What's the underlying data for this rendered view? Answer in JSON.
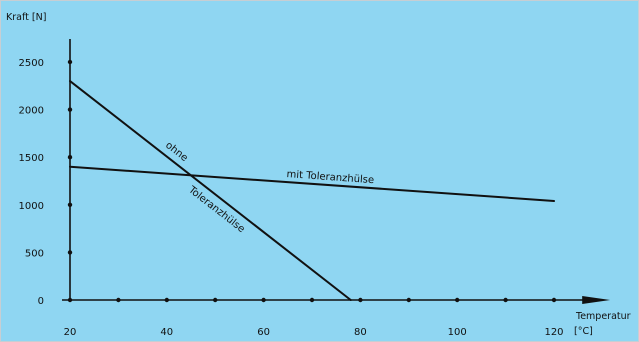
{
  "colors": {
    "background": "#8fd6f2",
    "line": "#111111",
    "frame": "#c7ced3"
  },
  "chart_data": {
    "type": "line",
    "xlabel": "Temperatur",
    "xunit": "[°C]",
    "ylabel": "Kraft [N]",
    "xlim": [
      20,
      125
    ],
    "ylim": [
      0,
      2700
    ],
    "x_tick_labels": [
      20,
      40,
      60,
      80,
      100,
      120
    ],
    "x_minor_ticks": [
      30,
      50,
      70,
      90,
      110
    ],
    "y_tick_labels": [
      0,
      500,
      1000,
      1500,
      2000,
      2500
    ],
    "grid": false,
    "series": [
      {
        "name": "mit Toleranzhülse",
        "x": [
          20,
          120
        ],
        "y": [
          1400,
          1040
        ]
      },
      {
        "name": "ohne Toleranzhülse",
        "x": [
          20,
          78
        ],
        "y": [
          2300,
          0
        ]
      }
    ],
    "annotations": {
      "mit": "mit Toleranzhülse",
      "ohne_1": "ohne",
      "ohne_2": "Toleranzhülse"
    }
  }
}
